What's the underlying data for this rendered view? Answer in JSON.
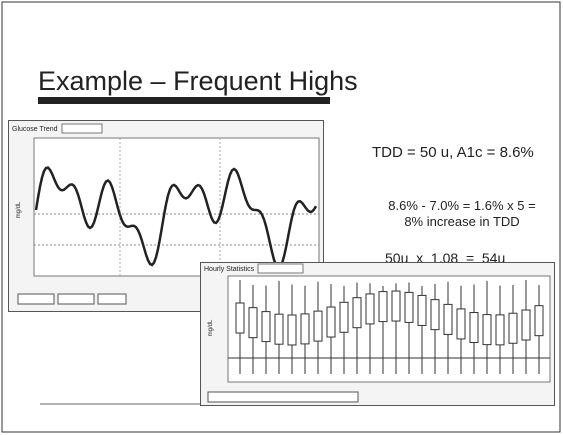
{
  "title": "Example – Frequent Highs",
  "notes": [
    "TDD = 50 u, A1c = 8.6%",
    "8.6% - 7.0% = 1.6% x 5 =",
    "8% increase in TDD",
    "50u  x  1.08  =  54u"
  ],
  "left_image": {
    "label": "Glucose Trend",
    "axis_label": "mg/dL"
  },
  "right_image": {
    "label": "Hourly Statistics",
    "axis_label": "mg/dL"
  }
}
